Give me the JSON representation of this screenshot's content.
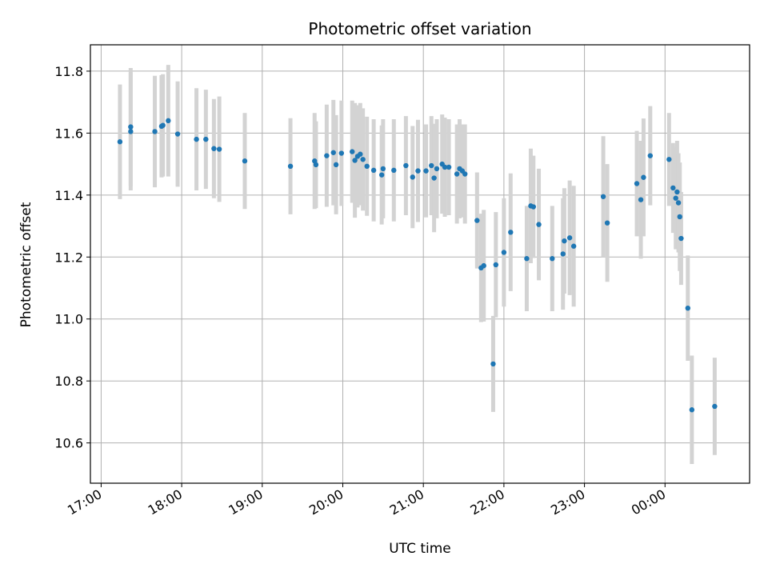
{
  "chart_data": {
    "type": "scatter",
    "title": "Photometric offset variation",
    "xlabel": "UTC time",
    "ylabel": "Photometric offset",
    "x_unit": "UTC time, minutes after 17:00 (values past 24:00 wrap to next day)",
    "xlim": [
      -8,
      483
    ],
    "ylim": [
      10.47,
      11.885
    ],
    "xticks": [
      {
        "value": 0,
        "label": "17:00"
      },
      {
        "value": 60,
        "label": "18:00"
      },
      {
        "value": 120,
        "label": "19:00"
      },
      {
        "value": 180,
        "label": "20:00"
      },
      {
        "value": 240,
        "label": "21:00"
      },
      {
        "value": 300,
        "label": "22:00"
      },
      {
        "value": 360,
        "label": "23:00"
      },
      {
        "value": 420,
        "label": "00:00"
      }
    ],
    "yticks": [
      {
        "value": 10.6,
        "label": "10.6"
      },
      {
        "value": 10.8,
        "label": "10.8"
      },
      {
        "value": 11.0,
        "label": "11.0"
      },
      {
        "value": 11.2,
        "label": "11.2"
      },
      {
        "value": 11.4,
        "label": "11.4"
      },
      {
        "value": 11.6,
        "label": "11.6"
      },
      {
        "value": 11.8,
        "label": "11.8"
      }
    ],
    "grid": true,
    "colors": {
      "points": "#1f77b4",
      "errorbars": "#d3d3d3",
      "grid": "#b0b0b0"
    },
    "series": [
      {
        "points": [
          [
            14,
            11.572,
            0.185
          ],
          [
            22,
            11.62,
            0.19
          ],
          [
            22,
            11.605,
            0.19
          ],
          [
            40,
            11.605,
            0.18
          ],
          [
            45,
            11.622,
            0.165
          ],
          [
            46,
            11.625,
            0.165
          ],
          [
            50,
            11.64,
            0.18
          ],
          [
            57,
            11.597,
            0.17
          ],
          [
            71,
            11.58,
            0.165
          ],
          [
            78,
            11.58,
            0.16
          ],
          [
            84,
            11.55,
            0.16
          ],
          [
            88,
            11.548,
            0.17
          ],
          [
            107,
            11.51,
            0.155
          ],
          [
            141,
            11.493,
            0.155
          ],
          [
            159,
            11.51,
            0.155
          ],
          [
            160,
            11.498,
            0.14
          ],
          [
            168,
            11.527,
            0.165
          ],
          [
            173,
            11.537,
            0.17
          ],
          [
            175,
            11.498,
            0.16
          ],
          [
            179,
            11.535,
            0.17
          ],
          [
            187,
            11.54,
            0.165
          ],
          [
            189,
            11.512,
            0.185
          ],
          [
            191,
            11.525,
            0.165
          ],
          [
            193,
            11.532,
            0.165
          ],
          [
            195,
            11.515,
            0.165
          ],
          [
            198,
            11.493,
            0.16
          ],
          [
            203,
            11.48,
            0.165
          ],
          [
            209,
            11.465,
            0.16
          ],
          [
            210,
            11.485,
            0.16
          ],
          [
            218,
            11.48,
            0.165
          ],
          [
            227,
            11.495,
            0.16
          ],
          [
            232,
            11.458,
            0.165
          ],
          [
            236,
            11.478,
            0.165
          ],
          [
            242,
            11.478,
            0.15
          ],
          [
            246,
            11.495,
            0.16
          ],
          [
            248,
            11.455,
            0.175
          ],
          [
            250,
            11.485,
            0.16
          ],
          [
            254,
            11.5,
            0.16
          ],
          [
            256,
            11.49,
            0.16
          ],
          [
            259,
            11.49,
            0.155
          ],
          [
            265,
            11.468,
            0.16
          ],
          [
            267,
            11.485,
            0.16
          ],
          [
            269,
            11.478,
            0.15
          ],
          [
            271,
            11.468,
            0.16
          ],
          [
            280,
            11.318,
            0.155
          ],
          [
            283,
            11.165,
            0.175
          ],
          [
            285,
            11.172,
            0.18
          ],
          [
            292,
            10.855,
            0.155
          ],
          [
            294,
            11.175,
            0.17
          ],
          [
            300,
            11.215,
            0.175
          ],
          [
            305,
            11.28,
            0.19
          ],
          [
            317,
            11.195,
            0.17
          ],
          [
            320,
            11.365,
            0.185
          ],
          [
            322,
            11.362,
            0.165
          ],
          [
            326,
            11.305,
            0.18
          ],
          [
            336,
            11.195,
            0.17
          ],
          [
            344,
            11.21,
            0.18
          ],
          [
            345,
            11.252,
            0.17
          ],
          [
            349,
            11.262,
            0.185
          ],
          [
            352,
            11.235,
            0.195
          ],
          [
            374,
            11.395,
            0.195
          ],
          [
            377,
            11.31,
            0.19
          ],
          [
            399,
            11.437,
            0.17
          ],
          [
            402,
            11.385,
            0.19
          ],
          [
            404,
            11.457,
            0.19
          ],
          [
            409,
            11.527,
            0.16
          ],
          [
            423,
            11.515,
            0.15
          ],
          [
            426,
            11.423,
            0.145
          ],
          [
            428,
            11.39,
            0.165
          ],
          [
            429,
            11.41,
            0.165
          ],
          [
            430,
            11.375,
            0.16
          ],
          [
            431,
            11.33,
            0.175
          ],
          [
            432,
            11.26,
            0.15
          ],
          [
            437,
            11.035,
            0.17
          ],
          [
            440,
            10.707,
            0.175
          ],
          [
            457,
            10.718,
            0.157
          ]
        ]
      }
    ]
  }
}
